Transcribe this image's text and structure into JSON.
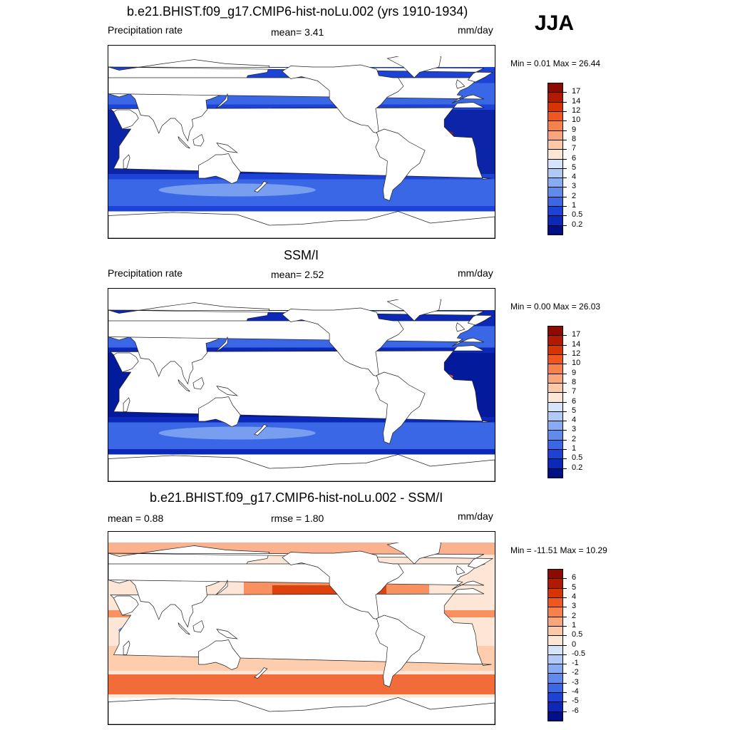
{
  "season": "JJA",
  "panels": [
    {
      "title": "b.e21.BHIST.f09_g17.CMIP6-hist-noLu.002 (yrs 1910-1934)",
      "left": "Precipitation rate",
      "center": "mean=   3.41",
      "right": "mm/day",
      "minmax": "Min =   0.01 Max =  26.44",
      "field": "model",
      "colorbar": {
        "labels": [
          "17",
          "14",
          "12",
          "10",
          "9",
          "8",
          "7",
          "6",
          "5",
          "4",
          "3",
          "2",
          "1",
          "0.5",
          "0.2"
        ],
        "colors": [
          "#8c0a00",
          "#b21a00",
          "#d83300",
          "#f0561e",
          "#f7814a",
          "#fba57a",
          "#fdc8a6",
          "#fde6d6",
          "#d6e4fb",
          "#b0caf8",
          "#88acf3",
          "#5f8bed",
          "#3a67e6",
          "#1c43d6",
          "#0b28b8",
          "#001088"
        ]
      }
    },
    {
      "title": "SSM/I",
      "left": "Precipitation rate",
      "center": "mean=   2.52",
      "right": "mm/day",
      "minmax": "Min =   0.00 Max =  26.03",
      "field": "obs",
      "colorbar": {
        "labels": [
          "17",
          "14",
          "12",
          "10",
          "9",
          "8",
          "7",
          "6",
          "5",
          "4",
          "3",
          "2",
          "1",
          "0.5",
          "0.2"
        ],
        "colors": [
          "#8c0a00",
          "#b21a00",
          "#d83300",
          "#f0561e",
          "#f7814a",
          "#fba57a",
          "#fdc8a6",
          "#fde6d6",
          "#d6e4fb",
          "#b0caf8",
          "#88acf3",
          "#5f8bed",
          "#3a67e6",
          "#1c43d6",
          "#0b28b8",
          "#001088"
        ]
      }
    },
    {
      "title": "b.e21.BHIST.f09_g17.CMIP6-hist-noLu.002 - SSM/I",
      "left": "mean =   0.88",
      "center": "rmse =   1.80",
      "right": "mm/day",
      "minmax": "Min = -11.51 Max =  10.29",
      "field": "diff",
      "colorbar": {
        "labels": [
          "6",
          "5",
          "4",
          "3",
          "2",
          "1",
          "0.5",
          "0",
          "-0.5",
          "-1",
          "-2",
          "-3",
          "-4",
          "-5",
          "-6"
        ],
        "colors": [
          "#8c0a00",
          "#b21a00",
          "#d83300",
          "#f0561e",
          "#f7814a",
          "#fba57a",
          "#fdc8a6",
          "#fde6d6",
          "#d6e4fb",
          "#b0caf8",
          "#88acf3",
          "#5f8bed",
          "#3a67e6",
          "#1c43d6",
          "#0b28b8",
          "#001088"
        ]
      }
    }
  ]
}
